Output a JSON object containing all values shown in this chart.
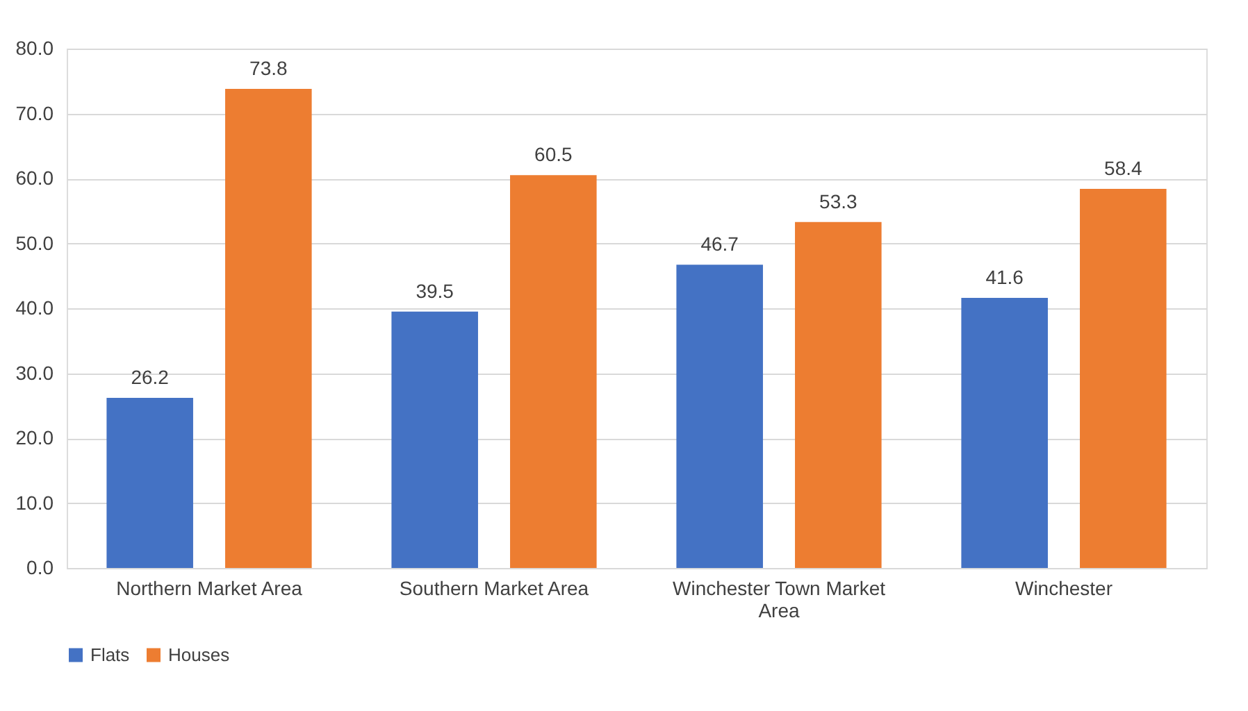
{
  "chart_data": {
    "type": "bar",
    "categories": [
      "Northern Market Area",
      "Southern Market Area",
      "Winchester Town Market Area",
      "Winchester"
    ],
    "series": [
      {
        "name": "Flats",
        "color": "#4472c4",
        "values": [
          26.2,
          39.5,
          46.7,
          41.6
        ]
      },
      {
        "name": "Houses",
        "color": "#ed7d31",
        "values": [
          73.8,
          60.5,
          53.3,
          58.4
        ]
      }
    ],
    "ylim": [
      0,
      80
    ],
    "yticks": [
      {
        "value": 0,
        "label": "0.0"
      },
      {
        "value": 10,
        "label": "10.0"
      },
      {
        "value": 20,
        "label": "20.0"
      },
      {
        "value": 30,
        "label": "30.0"
      },
      {
        "value": 40,
        "label": "40.0"
      },
      {
        "value": 50,
        "label": "50.0"
      },
      {
        "value": 60,
        "label": "60.0"
      },
      {
        "value": 70,
        "label": "70.0"
      },
      {
        "value": 80,
        "label": "80.0"
      }
    ],
    "grid": "y",
    "legend": "bottom",
    "data_labels": true
  }
}
